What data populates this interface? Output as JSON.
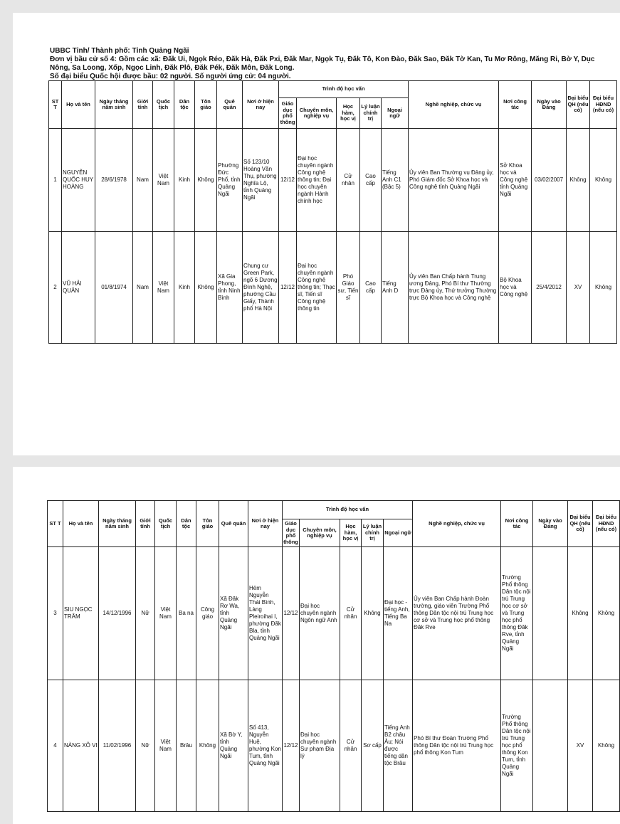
{
  "pages": [
    {
      "header": {
        "line1": "UBBC Tỉnh/ Thành phố: Tỉnh Quảng Ngãi",
        "line2": "Đơn vị bầu cử số 4: Gồm các xã: Đăk Ui, Ngọk Réo, Đăk Hà, Đăk Pxi, Đăk Mar, Ngọk Tụ, Đăk Tô, Kon Đào, Đăk Sao, Đăk Tờ Kan, Tu Mơ Rông, Măng Ri, Bờ Y, Dục Nông, Sa Loong, Xốp, Ngọc Linh, Đăk Plô, Đăk Pék, Đăk Môn, Đăk Long.",
        "line3": "Số đại biểu Quốc hội được bầu: 02 người. Số người ứng cử: 04 người."
      },
      "table": {
        "group_header": "Trình độ học vấn",
        "columns": [
          "ST T",
          "Họ và tên",
          "Ngày tháng năm sinh",
          "Giới tính",
          "Quốc tịch",
          "Dân tộc",
          "Tôn giáo",
          "Quê quán",
          "Nơi ở hiện nay",
          "Giáo dục phổ thông",
          "Chuyên môn, nghiệp vụ",
          "Học hàm, học vị",
          "Lý luận chính trị",
          "Ngoại ngữ",
          "Nghề nghiệp, chức vụ",
          "Nơi công tác",
          "Ngày vào Đảng",
          "Đại biểu QH (nếu có)",
          "Đại biểu HĐND (nếu có)"
        ],
        "rows": [
          [
            "1",
            "NGUYỄN QUỐC HUY HOÀNG",
            "28/6/1978",
            "Nam",
            "Việt Nam",
            "Kinh",
            "Không",
            "Phường Đức Phổ, tỉnh Quảng Ngãi",
            "Số 123/10 Hoàng Văn Thụ, phường Nghĩa Lộ, tỉnh Quảng Ngãi",
            "12/12",
            "Đại học chuyên ngành Công nghệ thông tin; Đại học chuyên ngành Hành chính học",
            "Cử nhân",
            "Cao cấp",
            "Tiếng Anh C1 (Bậc 5)",
            "Ủy viên Ban Thường vụ Đảng ủy, Phó Giám đốc Sở Khoa học và Công nghệ tỉnh Quảng Ngãi",
            "Sở Khoa học và Công nghệ tỉnh Quảng Ngãi",
            "03/02/2007",
            "Không",
            "Không"
          ],
          [
            "2",
            "VŨ HẢI QUÂN",
            "01/8/1974",
            "Nam",
            "Việt Nam",
            "Kinh",
            "Không",
            "Xã Gia Phong, tỉnh Ninh Bình",
            "Chung cư Green Park, ngõ 6 Dương Đình Nghệ, phường Cầu Giấy, Thành phố Hà Nội",
            "12/12",
            "Đại học chuyên ngành Công nghệ thông tin; Thạc sĩ, Tiến sĩ Công nghệ thông tin",
            "Phó Giáo sư, Tiến sĩ",
            "Cao cấp",
            "Tiếng Anh D",
            "Ủy viên Ban Chấp hành Trung ương Đảng, Phó Bí thư Thường trực Đảng ủy, Thứ trưởng Thường trực Bộ Khoa học và Công nghệ",
            "Bộ Khoa học và Công nghệ",
            "25/4/2012",
            "XV",
            "Không"
          ]
        ]
      }
    },
    {
      "table": {
        "group_header": "Trình độ học vấn",
        "columns": [
          "ST T",
          "Họ và tên",
          "Ngày tháng năm sinh",
          "Giới tính",
          "Quốc tịch",
          "Dân tộc",
          "Tôn giáo",
          "Quê quán",
          "Nơi ở hiện nay",
          "Giáo dục phổ thông",
          "Chuyên môn, nghiệp vụ",
          "Học hàm, học vị",
          "Lý luận chính trị",
          "Ngoại ngữ",
          "Nghề nghiệp, chức vụ",
          "Nơi công tác",
          "Ngày vào Đảng",
          "Đại biểu QH (nếu có)",
          "Đại biểu HĐND (nếu có)"
        ],
        "rows": [
          [
            "3",
            "SIU NGỌC TRÂM",
            "14/12/1996",
            "Nữ",
            "Việt Nam",
            "Ba na",
            "Công giáo",
            "Xã Đăk Rơ Wa, tỉnh Quảng Ngãi",
            "Hẻm Nguyễn Thái Bình, Làng Pleiroihai I, phường Đăk Bla, tỉnh Quảng Ngãi",
            "12/12",
            "Đại học chuyên ngành Ngôn ngữ Anh",
            "Cử nhân",
            "Không",
            "Đại học - tiếng Anh, Tiếng Ba Na",
            "Ủy viên Ban Chấp hành Đoàn trường, giáo viên Trường Phổ thông Dân tộc nội trú Trung học cơ sở và Trung học phổ thông Đăk Rve",
            "Trường Phổ thông Dân tộc nội trú Trung học cơ sở và Trung học phổ thông Đăk Rve, tỉnh Quảng Ngãi",
            null,
            "Không",
            "Không"
          ],
          [
            "4",
            "NÀNG XÔ VI",
            "11/02/1996",
            "Nữ",
            "Việt Nam",
            "Brâu",
            "Không",
            "Xã Bờ Y, tỉnh Quảng Ngãi",
            "Số 413, Nguyễn Huệ, phường Kon Tum, tỉnh Quảng Ngãi",
            "12/12",
            "Đại học chuyên ngành Sư phạm Địa lý",
            "Cử nhân",
            "Sơ cấp",
            "Tiếng Anh B2 châu Âu; Nói được tiếng dân tộc Brâu",
            "Phó Bí thư Đoàn Trường Phổ thông Dân tộc nội trú Trung học phổ thông Kon Tum",
            "Trường Phổ thông Dân tộc nội trú Trung học phổ thông Kon Tum, tỉnh Quảng Ngãi",
            null,
            "XV",
            "Không"
          ]
        ]
      }
    }
  ]
}
